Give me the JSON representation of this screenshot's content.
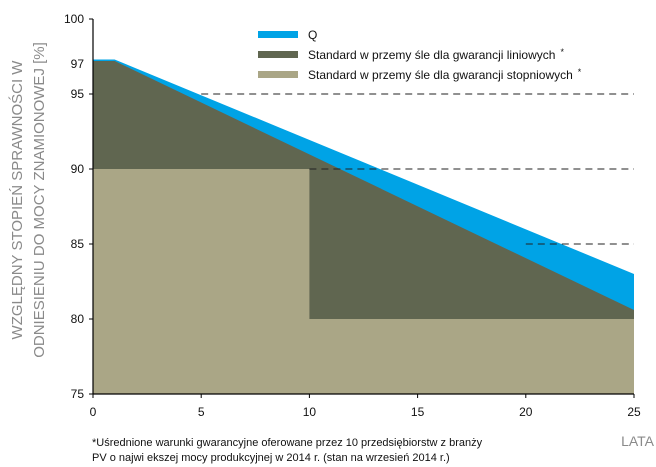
{
  "chart_data": {
    "type": "area",
    "ylabel_line1": "WZGLĘDNY STOPIEŃ SPRAWNOŚCI W",
    "ylabel_line2": "ODNIESIENIU DO MOCY ZNAMIONOWEJ [%]",
    "xlabel": "LATA",
    "xlim": [
      0,
      25
    ],
    "ylim": [
      75,
      100
    ],
    "xticks": [
      "0",
      "5",
      "10",
      "15",
      "20",
      "25"
    ],
    "yticks": [
      "75",
      "80",
      "85",
      "90",
      "95",
      "100"
    ],
    "highlight_tick": "97",
    "grid": "dashed lines at 85, 90, 95 (right part)",
    "legend_position": "top-center",
    "series": [
      {
        "name": "Q",
        "color": "#00a3e6",
        "x": [
          0,
          1,
          25
        ],
        "y": [
          97.3,
          97.3,
          83
        ]
      },
      {
        "name": "Standard w przemy śle dla gwarancji liniowych",
        "legend_mark": "*",
        "color": "#606650",
        "x": [
          0,
          1,
          25
        ],
        "y": [
          97.2,
          97.2,
          80.6
        ]
      },
      {
        "name": "Standard w przemy śle dla gwarancji stopniowych",
        "legend_mark": "*",
        "color": "#aaa686",
        "x": [
          0,
          10,
          10,
          25
        ],
        "y": [
          90,
          90,
          80,
          80
        ]
      }
    ],
    "footnote_line1": "*Uśrednione warunki gwarancyjne oferowane przez 10 przedsiębiorstw z branży",
    "footnote_line2": "PV o najwi ekszej mocy produkcyjnej w 2014 r. (stan na wrzesień 2014 r.)"
  }
}
